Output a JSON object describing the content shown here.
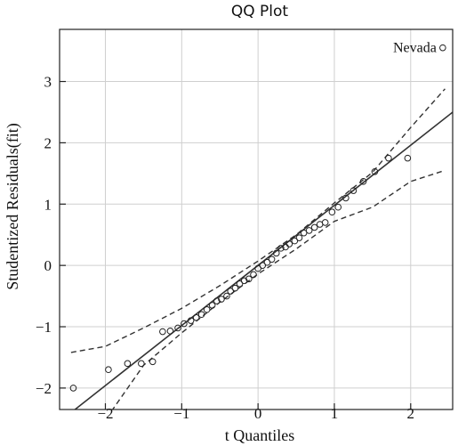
{
  "chart_data": {
    "type": "scatter",
    "title": "QQ Plot",
    "xlabel": "t Quantiles",
    "ylabel": "Studentized Residuals(fit)",
    "xlim": [
      -2.6,
      2.55
    ],
    "ylim": [
      -2.35,
      3.85
    ],
    "xticks": [
      -2,
      -1,
      0,
      1,
      2
    ],
    "yticks": [
      -2,
      -1,
      0,
      1,
      2,
      3
    ],
    "xtick_labels": [
      "−2",
      "−1",
      "0",
      "1",
      "2"
    ],
    "ytick_labels": [
      "−2",
      "−1",
      "0",
      "1",
      "2",
      "3"
    ],
    "grid": true,
    "annotation": {
      "text": "Nevada",
      "x": 2.42,
      "y": 3.55
    },
    "points": [
      {
        "x": -2.42,
        "y": -2.0
      },
      {
        "x": -1.96,
        "y": -1.7
      },
      {
        "x": -1.71,
        "y": -1.6
      },
      {
        "x": -1.53,
        "y": -1.6
      },
      {
        "x": -1.38,
        "y": -1.57
      },
      {
        "x": -1.25,
        "y": -1.08
      },
      {
        "x": -1.15,
        "y": -1.07
      },
      {
        "x": -1.05,
        "y": -1.02
      },
      {
        "x": -0.97,
        "y": -0.95
      },
      {
        "x": -0.88,
        "y": -0.9
      },
      {
        "x": -0.81,
        "y": -0.85
      },
      {
        "x": -0.74,
        "y": -0.8
      },
      {
        "x": -0.67,
        "y": -0.72
      },
      {
        "x": -0.6,
        "y": -0.65
      },
      {
        "x": -0.54,
        "y": -0.58
      },
      {
        "x": -0.48,
        "y": -0.55
      },
      {
        "x": -0.41,
        "y": -0.5
      },
      {
        "x": -0.36,
        "y": -0.42
      },
      {
        "x": -0.3,
        "y": -0.37
      },
      {
        "x": -0.24,
        "y": -0.3
      },
      {
        "x": -0.18,
        "y": -0.25
      },
      {
        "x": -0.12,
        "y": -0.22
      },
      {
        "x": -0.06,
        "y": -0.15
      },
      {
        "x": 0.0,
        "y": -0.05
      },
      {
        "x": 0.06,
        "y": 0.0
      },
      {
        "x": 0.12,
        "y": 0.05
      },
      {
        "x": 0.18,
        "y": 0.1
      },
      {
        "x": 0.24,
        "y": 0.2
      },
      {
        "x": 0.3,
        "y": 0.28
      },
      {
        "x": 0.36,
        "y": 0.3
      },
      {
        "x": 0.41,
        "y": 0.35
      },
      {
        "x": 0.48,
        "y": 0.4
      },
      {
        "x": 0.54,
        "y": 0.45
      },
      {
        "x": 0.6,
        "y": 0.53
      },
      {
        "x": 0.67,
        "y": 0.57
      },
      {
        "x": 0.74,
        "y": 0.62
      },
      {
        "x": 0.81,
        "y": 0.67
      },
      {
        "x": 0.88,
        "y": 0.7
      },
      {
        "x": 0.97,
        "y": 0.87
      },
      {
        "x": 1.05,
        "y": 0.95
      },
      {
        "x": 1.15,
        "y": 1.1
      },
      {
        "x": 1.25,
        "y": 1.22
      },
      {
        "x": 1.38,
        "y": 1.37
      },
      {
        "x": 1.53,
        "y": 1.53
      },
      {
        "x": 1.71,
        "y": 1.75
      },
      {
        "x": 1.96,
        "y": 1.75
      },
      {
        "x": 2.42,
        "y": 3.55
      }
    ],
    "reference_line": {
      "intercept": 0.0,
      "slope": 0.98
    },
    "envelope_upper": [
      [
        -2.45,
        -1.42
      ],
      [
        -2.0,
        -1.32
      ],
      [
        -1.5,
        -1.02
      ],
      [
        -1.0,
        -0.7
      ],
      [
        -0.5,
        -0.33
      ],
      [
        0.0,
        0.07
      ],
      [
        0.5,
        0.5
      ],
      [
        1.0,
        1.02
      ],
      [
        1.5,
        1.52
      ],
      [
        2.0,
        2.25
      ],
      [
        2.45,
        2.88
      ]
    ],
    "envelope_lower": [
      [
        -2.45,
        -3.15
      ],
      [
        -2.0,
        -2.52
      ],
      [
        -1.5,
        -1.63
      ],
      [
        -1.0,
        -1.1
      ],
      [
        -0.5,
        -0.6
      ],
      [
        0.0,
        -0.14
      ],
      [
        0.5,
        0.27
      ],
      [
        1.0,
        0.72
      ],
      [
        1.5,
        0.95
      ],
      [
        2.0,
        1.37
      ],
      [
        2.45,
        1.55
      ]
    ]
  }
}
